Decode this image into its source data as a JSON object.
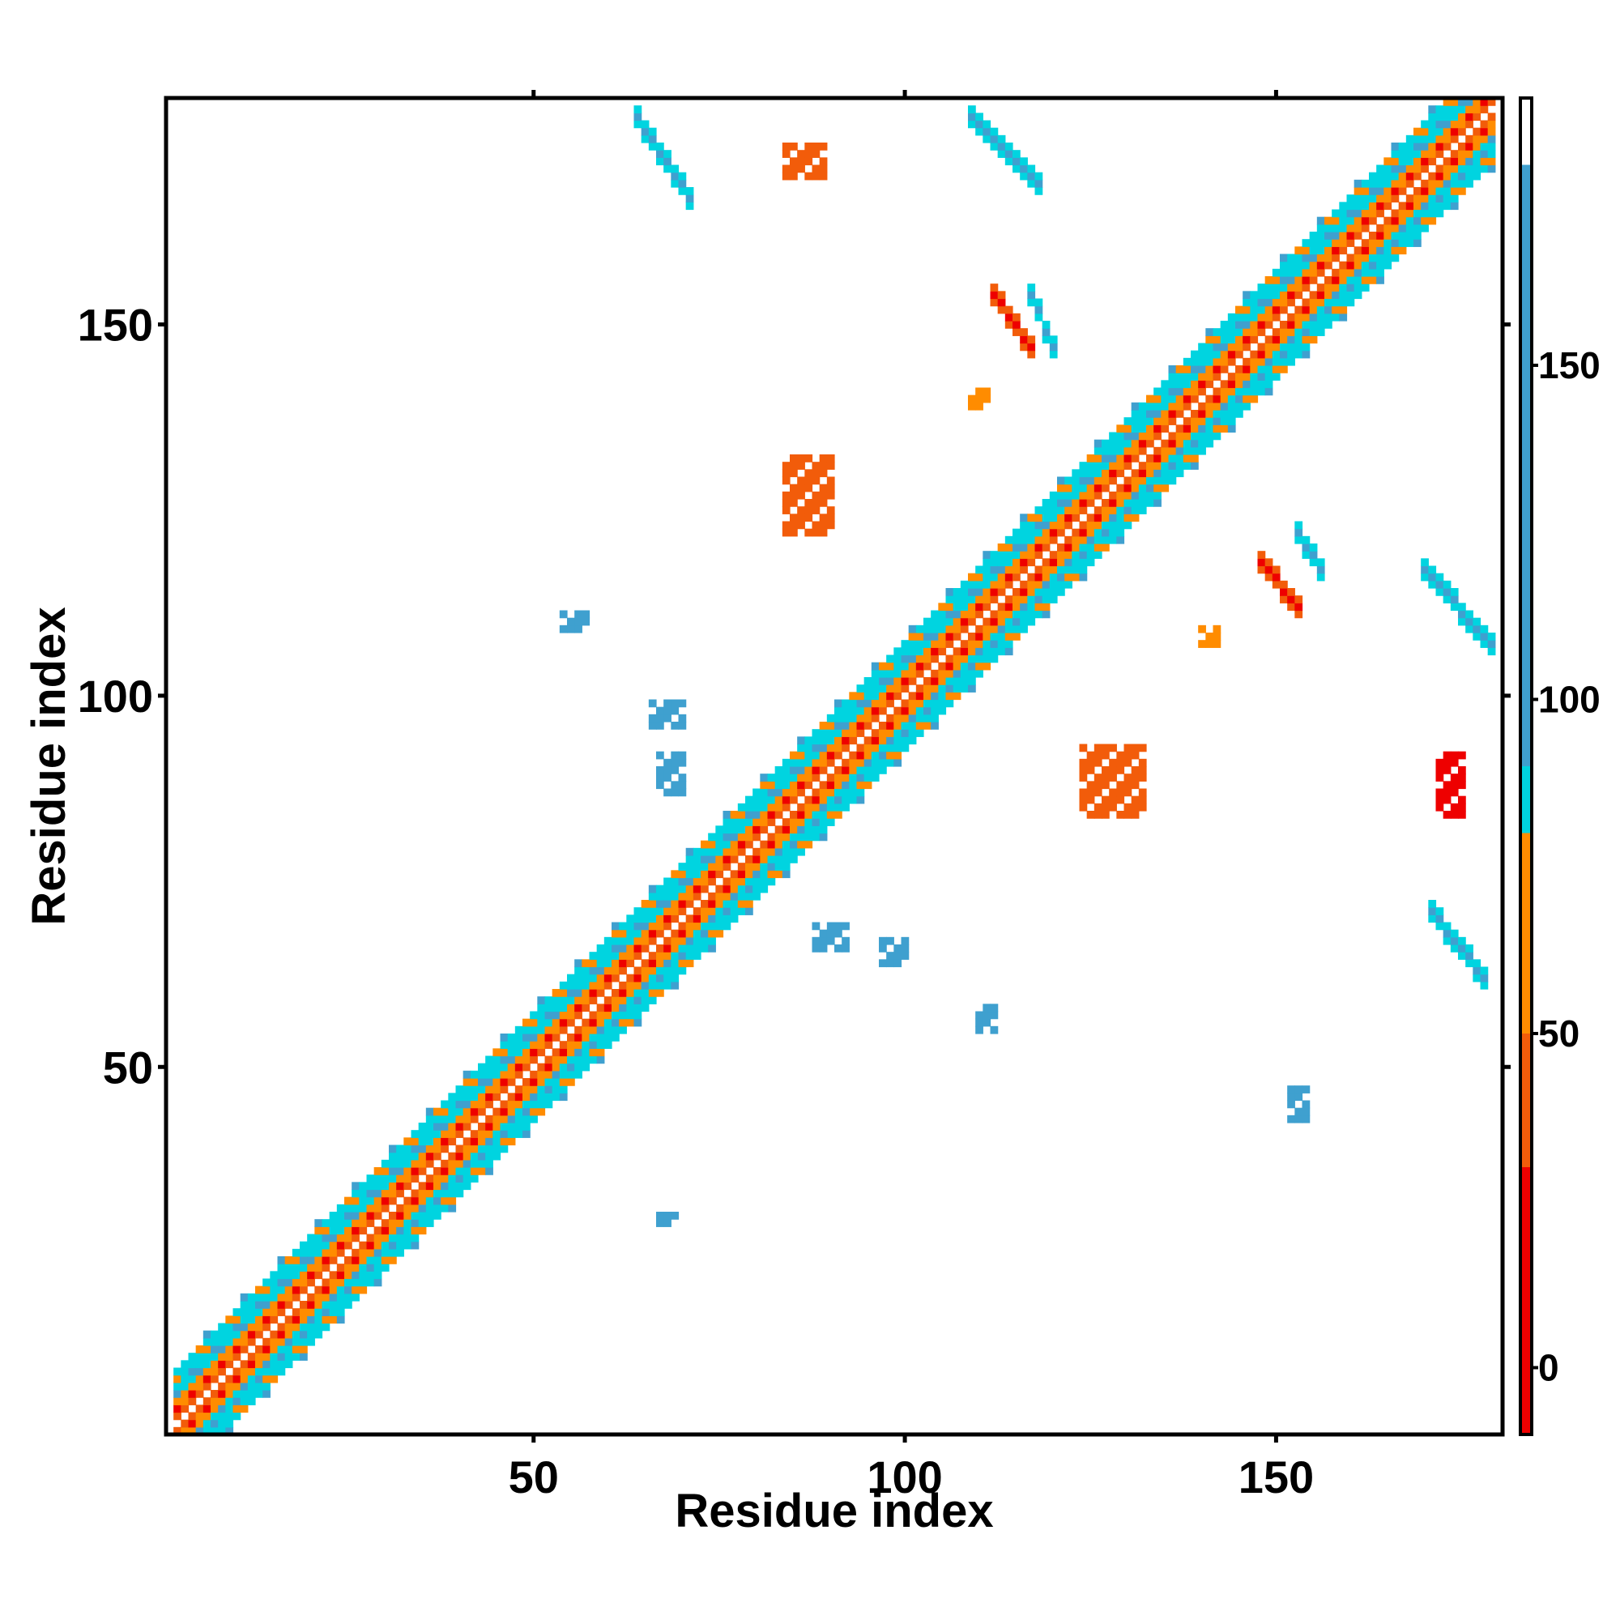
{
  "chart_data": {
    "type": "heatmap",
    "title": "",
    "xlabel": "Residue index",
    "ylabel": "Residue index",
    "xlim": [
      1,
      180
    ],
    "ylim": [
      1,
      180
    ],
    "x_ticks": [
      50,
      100,
      150
    ],
    "y_ticks": [
      50,
      100,
      150
    ],
    "grid": false,
    "legend": "colorbar-right",
    "colorbar": {
      "range": [
        -10,
        190
      ],
      "ticks": [
        0,
        50,
        100,
        150
      ],
      "colors": [
        {
          "from": -10,
          "to": 30,
          "color": "#ee0000"
        },
        {
          "from": 30,
          "to": 50,
          "color": "#f25c0a"
        },
        {
          "from": 50,
          "to": 80,
          "color": "#ff8c00"
        },
        {
          "from": 80,
          "to": 90,
          "color": "#00d4e0"
        },
        {
          "from": 90,
          "to": 180,
          "color": "#3fa0cf"
        },
        {
          "from": 180,
          "to": 190,
          "color": "#ffffff"
        }
      ]
    },
    "cells": {
      "diagonal": {
        "x_from": 2,
        "x_to": 179,
        "half_width": 8
      },
      "contacts": [
        {
          "x": [
            64,
            71
          ],
          "y": [
            167,
            178
          ],
          "orientation": "anti",
          "value": 150
        },
        {
          "x": [
            109,
            118
          ],
          "y": [
            169,
            178
          ],
          "orientation": "anti",
          "value": 150
        },
        {
          "x": [
            170,
            179
          ],
          "y": [
            107,
            117
          ],
          "orientation": "anti",
          "value": 150
        },
        {
          "x": [
            171,
            178
          ],
          "y": [
            62,
            71
          ],
          "orientation": "anti",
          "value": 150
        },
        {
          "x": [
            112,
            117
          ],
          "y": [
            147,
            154
          ],
          "orientation": "anti",
          "value": 10
        },
        {
          "x": [
            148,
            153
          ],
          "y": [
            112,
            118
          ],
          "orientation": "anti",
          "value": 10
        },
        {
          "x": [
            117,
            120
          ],
          "y": [
            147,
            154
          ],
          "orientation": "anti",
          "value": 90
        },
        {
          "x": [
            153,
            156
          ],
          "y": [
            117,
            122
          ],
          "orientation": "anti",
          "value": 90
        },
        {
          "x": [
            84,
            90
          ],
          "y": [
            122,
            132
          ],
          "orientation": "patch",
          "value": 45
        },
        {
          "x": [
            124,
            132
          ],
          "y": [
            84,
            93
          ],
          "orientation": "patch",
          "value": 45
        },
        {
          "x": [
            172,
            175
          ],
          "y": [
            84,
            92
          ],
          "orientation": "patch",
          "value": 20
        },
        {
          "x": [
            84,
            89
          ],
          "y": [
            170,
            174
          ],
          "orientation": "patch",
          "value": 30
        },
        {
          "x": [
            66,
            70
          ],
          "y": [
            96,
            99
          ],
          "orientation": "patch",
          "value": 140
        },
        {
          "x": [
            67,
            70
          ],
          "y": [
            87,
            92
          ],
          "orientation": "patch",
          "value": 140
        },
        {
          "x": [
            54,
            57
          ],
          "y": [
            109,
            111
          ],
          "orientation": "patch",
          "value": 140
        },
        {
          "x": [
            97,
            100
          ],
          "y": [
            64,
            67
          ],
          "orientation": "patch",
          "value": 140
        },
        {
          "x": [
            88,
            92
          ],
          "y": [
            66,
            69
          ],
          "orientation": "patch",
          "value": 140
        },
        {
          "x": [
            110,
            112
          ],
          "y": [
            55,
            58
          ],
          "orientation": "patch",
          "value": 140
        },
        {
          "x": [
            109,
            111
          ],
          "y": [
            139,
            141
          ],
          "orientation": "patch",
          "value": 55
        },
        {
          "x": [
            140,
            142
          ],
          "y": [
            107,
            109
          ],
          "orientation": "patch",
          "value": 55
        },
        {
          "x": [
            67,
            69
          ],
          "y": [
            29,
            30
          ],
          "orientation": "patch",
          "value": 140
        },
        {
          "x": [
            152,
            154
          ],
          "y": [
            43,
            47
          ],
          "orientation": "patch",
          "value": 140
        }
      ]
    }
  }
}
